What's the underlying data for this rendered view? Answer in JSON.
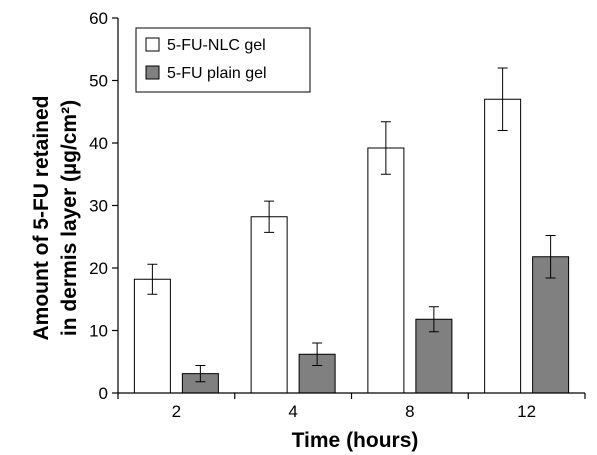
{
  "chart_data": {
    "type": "bar",
    "xlabel": "Time (hours)",
    "ylabel_lines": [
      "Amount of 5-FU retained",
      "in dermis layer (µg/cm²)"
    ],
    "categories": [
      "2",
      "4",
      "8",
      "12"
    ],
    "ylim": [
      0,
      60
    ],
    "yticks": [
      "0",
      "10",
      "20",
      "30",
      "40",
      "50",
      "60"
    ],
    "grid": false,
    "legend_position": "top-left",
    "series": [
      {
        "name": "5-FU-NLC gel",
        "color": "#ffffff",
        "values": [
          18.2,
          28.2,
          39.2,
          47.0
        ],
        "errors": [
          2.4,
          2.5,
          4.2,
          5.0
        ]
      },
      {
        "name": "5-FU plain gel",
        "color": "#808080",
        "values": [
          3.1,
          6.2,
          11.8,
          21.8
        ],
        "errors": [
          1.3,
          1.8,
          2.0,
          3.4
        ]
      }
    ]
  }
}
